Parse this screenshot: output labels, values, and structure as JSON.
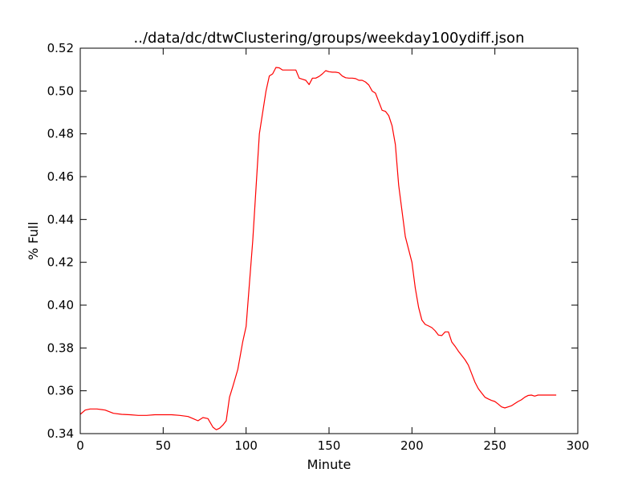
{
  "chart_data": {
    "type": "line",
    "title": "../data/dc/dtwClustering/groups/weekday100ydiff.json",
    "xlabel": "Minute",
    "ylabel": "% Full",
    "xlim": [
      0,
      300
    ],
    "ylim": [
      0.34,
      0.52
    ],
    "xticks": [
      0,
      50,
      100,
      150,
      200,
      250,
      300
    ],
    "yticks": [
      0.34,
      0.36,
      0.38,
      0.4,
      0.42,
      0.44,
      0.46,
      0.48,
      0.5,
      0.52
    ],
    "xtick_labels": [
      "0",
      "50",
      "100",
      "150",
      "200",
      "250",
      "300"
    ],
    "ytick_labels": [
      "0.34",
      "0.36",
      "0.38",
      "0.40",
      "0.42",
      "0.44",
      "0.46",
      "0.48",
      "0.50",
      "0.52"
    ],
    "grid": false,
    "series": [
      {
        "color": "#ff0000",
        "x": [
          0,
          3,
          6,
          10,
          15,
          20,
          25,
          30,
          35,
          40,
          45,
          50,
          55,
          60,
          65,
          68,
          71,
          74,
          77,
          80,
          82,
          84,
          86,
          88,
          90,
          92,
          95,
          98,
          100,
          102,
          104,
          106,
          108,
          110,
          112,
          114,
          116,
          118,
          120,
          122,
          124,
          126,
          128,
          130,
          132,
          134,
          136,
          138,
          140,
          142,
          144,
          146,
          148,
          150,
          152,
          154,
          156,
          158,
          160,
          162,
          164,
          166,
          168,
          170,
          172,
          174,
          176,
          178,
          180,
          182,
          184,
          186,
          188,
          190,
          192,
          194,
          196,
          198,
          200,
          202,
          204,
          206,
          208,
          210,
          212,
          214,
          216,
          218,
          220,
          222,
          224,
          226,
          228,
          230,
          232,
          234,
          236,
          238,
          240,
          242,
          244,
          246,
          248,
          250,
          252,
          254,
          256,
          258,
          260,
          262,
          264,
          266,
          268,
          270,
          272,
          274,
          276,
          278,
          280,
          282,
          284,
          286,
          287
        ],
        "y": [
          0.349,
          0.351,
          0.3515,
          0.3515,
          0.351,
          0.3495,
          0.349,
          0.3488,
          0.3485,
          0.3485,
          0.3488,
          0.3488,
          0.3488,
          0.3485,
          0.348,
          0.347,
          0.346,
          0.3475,
          0.347,
          0.343,
          0.3418,
          0.3425,
          0.344,
          0.346,
          0.357,
          0.362,
          0.37,
          0.383,
          0.39,
          0.41,
          0.43,
          0.455,
          0.48,
          0.49,
          0.5,
          0.507,
          0.508,
          0.511,
          0.5108,
          0.5098,
          0.5098,
          0.5098,
          0.5098,
          0.5098,
          0.506,
          0.5055,
          0.505,
          0.503,
          0.506,
          0.506,
          0.5068,
          0.508,
          0.5095,
          0.509,
          0.5088,
          0.5088,
          0.5085,
          0.507,
          0.5062,
          0.506,
          0.506,
          0.5058,
          0.505,
          0.505,
          0.5042,
          0.5028,
          0.5,
          0.499,
          0.495,
          0.491,
          0.4905,
          0.4885,
          0.4838,
          0.475,
          0.456,
          0.444,
          0.432,
          0.426,
          0.42,
          0.408,
          0.399,
          0.393,
          0.391,
          0.3903,
          0.3895,
          0.388,
          0.386,
          0.3858,
          0.3875,
          0.3875,
          0.3828,
          0.3808,
          0.3785,
          0.3765,
          0.3745,
          0.372,
          0.368,
          0.364,
          0.361,
          0.359,
          0.357,
          0.3562,
          0.3555,
          0.355,
          0.3538,
          0.3525,
          0.352,
          0.3525,
          0.353,
          0.354,
          0.355,
          0.3558,
          0.357,
          0.3578,
          0.358,
          0.3575,
          0.358,
          0.358,
          0.358,
          0.358,
          0.358,
          0.358,
          0.358
        ]
      }
    ]
  }
}
